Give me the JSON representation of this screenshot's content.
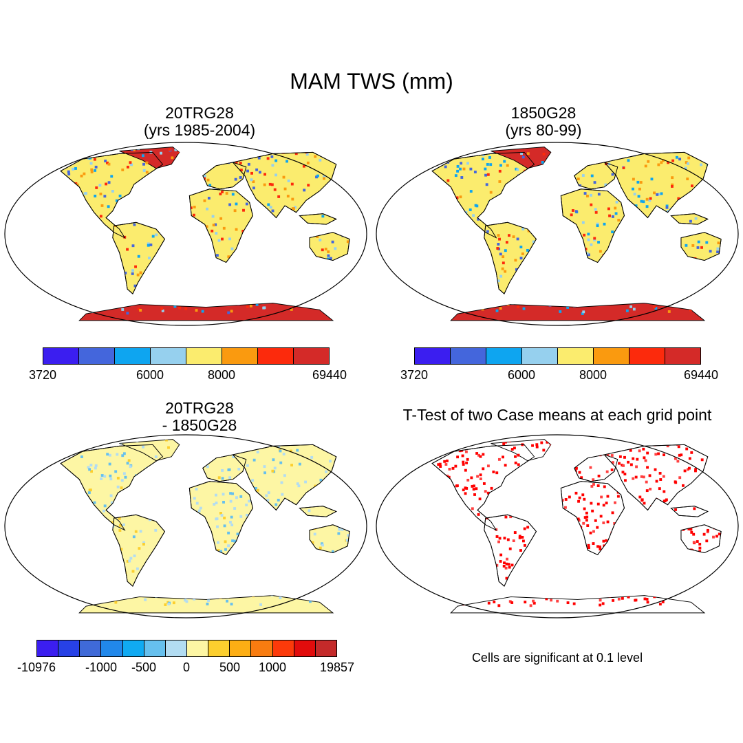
{
  "main_title": "MAM TWS (mm)",
  "panels": [
    {
      "title_line1": "20TRG28",
      "title_line2": "(yrs 1985-2004)",
      "colorbar": {
        "colors": [
          "#3b1ef0",
          "#4466dc",
          "#0ea5f0",
          "#96d0ee",
          "#fbec6e",
          "#fa9a0f",
          "#fc2a0c",
          "#d42a28"
        ],
        "tick_labels": [
          "3720",
          "6000",
          "8000",
          "69440"
        ]
      }
    },
    {
      "title_line1": "1850G28",
      "title_line2": "(yrs 80-99)",
      "colorbar": {
        "colors": [
          "#3b1ef0",
          "#4466dc",
          "#0ea5f0",
          "#96d0ee",
          "#fbec6e",
          "#fa9a0f",
          "#fc2a0c",
          "#d42a28"
        ],
        "tick_labels": [
          "3720",
          "6000",
          "8000",
          "69440"
        ]
      }
    },
    {
      "title_line1": "20TRG28",
      "title_line2": "- 1850G28",
      "colorbar": {
        "colors": [
          "#3b1ef0",
          "#2741e6",
          "#3f6ad8",
          "#2188ea",
          "#10aaf2",
          "#66c0ee",
          "#b2dcf2",
          "#fdf6a4",
          "#fccf2e",
          "#fdae14",
          "#f87c10",
          "#fc3a0a",
          "#e20c0c",
          "#c42a2a"
        ],
        "tick_labels": [
          "-10976",
          "-1000",
          "-500",
          "0",
          "500",
          "1000",
          "19857"
        ]
      }
    },
    {
      "title_line1": "T-Test of two Case means at each grid point",
      "note": "Cells are significant at 0.1 level"
    }
  ]
}
